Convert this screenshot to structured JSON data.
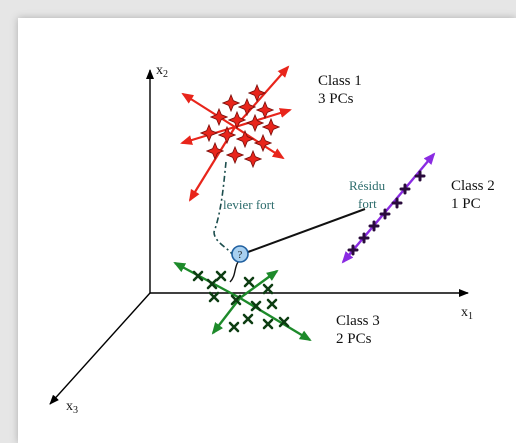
{
  "axes": {
    "x1": {
      "letter": "x",
      "sub": "1"
    },
    "x2": {
      "letter": "x",
      "sub": "2"
    },
    "x3": {
      "letter": "x",
      "sub": "3"
    }
  },
  "classes": [
    {
      "line1": "Class 1",
      "line2": "3 PCs",
      "color": "#e8251b"
    },
    {
      "line1": "Class 2",
      "line2": "1 PC",
      "color": "#8a2be2"
    },
    {
      "line1": "Class 3",
      "line2": "2 PCs",
      "color": "#1d8a2a"
    }
  ],
  "annotations": {
    "levier": "levier fort",
    "residu_line1": "Résidu",
    "residu_line2": "fort",
    "point_symbol": "?"
  },
  "colors": {
    "axis": "#000000",
    "outlier_fill": "#a8d0f0",
    "outlier_stroke": "#2060a0",
    "connector": "#111111"
  }
}
